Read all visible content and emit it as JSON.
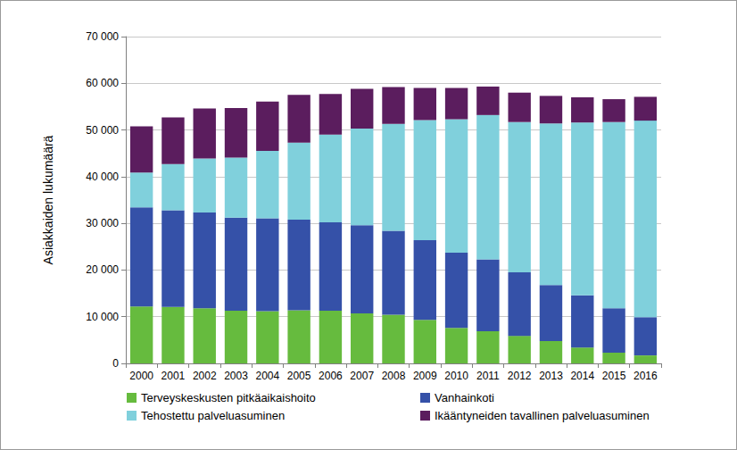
{
  "chart_data": {
    "type": "bar",
    "stacked": true,
    "grid": true,
    "legend": "bottom",
    "y_label": "Asiakkaiden lukumäärä",
    "categories": [
      "2000",
      "2001",
      "2002",
      "2003",
      "2004",
      "2005",
      "2006",
      "2007",
      "2008",
      "2009",
      "2010",
      "2011",
      "2012",
      "2013",
      "2014",
      "2015",
      "2016"
    ],
    "ylim": [
      0,
      70000
    ],
    "yticks": [
      0,
      {
        "value": 10000,
        "label": "10 000"
      },
      {
        "value": 20000,
        "label": "20 000"
      },
      {
        "value": 30000,
        "label": "30 000"
      },
      {
        "value": 40000,
        "label": "40 000"
      },
      {
        "value": 50000,
        "label": "50 000"
      },
      {
        "value": 60000,
        "label": "60 000"
      },
      {
        "value": 70000,
        "label": "70 000"
      }
    ],
    "series": [
      {
        "name": "Terveyskeskusten pitkäaikaishoito",
        "color": "#66bb3e",
        "values": [
          12200,
          12100,
          11800,
          11300,
          11200,
          11400,
          11300,
          10700,
          10400,
          9300,
          7600,
          6900,
          5900,
          4800,
          3400,
          2300,
          1700
        ]
      },
      {
        "name": "Vanhainkoti",
        "color": "#3551a8",
        "values": [
          21200,
          20700,
          20500,
          19900,
          19900,
          19400,
          18900,
          18900,
          18000,
          17100,
          16100,
          15400,
          13600,
          12000,
          11200,
          9500,
          8200
        ]
      },
      {
        "name": "Tehostettu palveluasuminen",
        "color": "#80d0dc",
        "values": [
          7500,
          9900,
          11600,
          12900,
          14400,
          16500,
          18800,
          20700,
          22900,
          25700,
          28600,
          30900,
          32200,
          34600,
          37000,
          39900,
          42100
        ]
      },
      {
        "name": "Ikääntyneiden tavallinen palveluasuminen",
        "color": "#5b1d5e",
        "values": [
          9900,
          10000,
          10700,
          10600,
          10600,
          10200,
          8700,
          8500,
          7900,
          6900,
          6700,
          6100,
          6300,
          5900,
          5400,
          4900,
          5100
        ]
      }
    ]
  }
}
